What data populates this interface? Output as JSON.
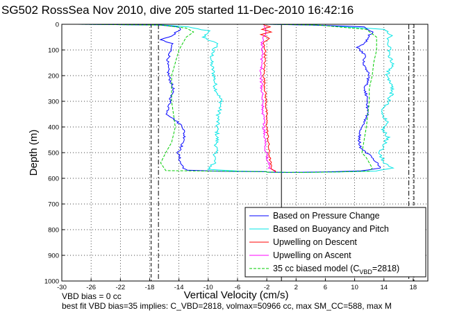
{
  "chart_data": {
    "type": "line",
    "title": "SG502 RossSea Nov 2010, dive 205 started 11-Dec-2010 16:42:16",
    "xlabel": "Vertical Velocity (cm/s)",
    "ylabel": "Depth (m)",
    "xlim": [
      -30,
      20
    ],
    "ylim": [
      1000,
      0
    ],
    "y_reversed": true,
    "xticks": [
      "-30",
      "-26",
      "-22",
      "-18",
      "-14",
      "-10",
      "-6",
      "-2",
      "2",
      "6",
      "10",
      "14",
      "18"
    ],
    "xtick_values": [
      -30,
      -26,
      -22,
      -18,
      -14,
      -10,
      -6,
      -2,
      2,
      6,
      10,
      14,
      18
    ],
    "yticks": [
      "0",
      "100",
      "200",
      "300",
      "400",
      "500",
      "600",
      "700",
      "800",
      "900",
      "1000"
    ],
    "ytick_values": [
      0,
      100,
      200,
      300,
      400,
      500,
      600,
      700,
      800,
      900,
      1000
    ],
    "grid": true,
    "legend_position": "bottom-right",
    "reference_lines": {
      "vertical_solid": [
        0
      ],
      "vertical_dashdot": [
        -16.8,
        17.4
      ],
      "vertical_dashed": [
        -17.8,
        18.1
      ]
    },
    "series": [
      {
        "name": "Based on Pressure Change",
        "color": "#0000ff",
        "descent": [
          [
            -28,
            0
          ],
          [
            -16.6,
            3
          ],
          [
            -14,
            10
          ],
          [
            -13.8,
            20
          ],
          [
            -15.3,
            50
          ],
          [
            -16.6,
            60
          ],
          [
            -15.0,
            75
          ],
          [
            -15.1,
            100
          ],
          [
            -15.6,
            150
          ],
          [
            -15.4,
            200
          ],
          [
            -14.8,
            250
          ],
          [
            -15.2,
            300
          ],
          [
            -15.6,
            350
          ],
          [
            -15.1,
            360
          ],
          [
            -13.4,
            400
          ],
          [
            -13.2,
            450
          ],
          [
            -14.1,
            500
          ],
          [
            -13.8,
            540
          ],
          [
            -13.3,
            560
          ],
          [
            -13.0,
            568
          ],
          [
            -8,
            573
          ],
          [
            -2,
            574
          ]
        ],
        "ascent": [
          [
            -2,
            576
          ],
          [
            1,
            577
          ],
          [
            6,
            575
          ],
          [
            11,
            571
          ],
          [
            13.5,
            560
          ],
          [
            13.0,
            540
          ],
          [
            12.0,
            510
          ],
          [
            10.8,
            480
          ],
          [
            10.6,
            440
          ],
          [
            10.9,
            400
          ],
          [
            11.7,
            360
          ],
          [
            11.8,
            300
          ],
          [
            11.4,
            250
          ],
          [
            12.0,
            200
          ],
          [
            11.2,
            150
          ],
          [
            11.4,
            120
          ],
          [
            10.4,
            90
          ],
          [
            11.5,
            70
          ],
          [
            11.8,
            50
          ],
          [
            12.4,
            30
          ],
          [
            11.4,
            10
          ],
          [
            4,
            3
          ],
          [
            -2,
            0
          ]
        ]
      },
      {
        "name": "Based on Buoyancy and Pitch",
        "color": "#00e5e5",
        "descent": [
          [
            -28,
            0
          ],
          [
            -16,
            3
          ],
          [
            -13,
            10
          ],
          [
            -10.0,
            25
          ],
          [
            -10.6,
            50
          ],
          [
            -8.6,
            80
          ],
          [
            -9.4,
            100
          ],
          [
            -9.6,
            150
          ],
          [
            -9.2,
            200
          ],
          [
            -9.0,
            250
          ],
          [
            -8.2,
            300
          ],
          [
            -8.6,
            350
          ],
          [
            -8.8,
            400
          ],
          [
            -8.8,
            450
          ],
          [
            -9.0,
            500
          ],
          [
            -9.2,
            540
          ],
          [
            -10.0,
            565
          ],
          [
            -6,
            572
          ],
          [
            -2,
            574
          ]
        ],
        "ascent": [
          [
            -2,
            576
          ],
          [
            3,
            577
          ],
          [
            8,
            575
          ],
          [
            13,
            572
          ],
          [
            15.0,
            560
          ],
          [
            14.0,
            540
          ],
          [
            13.5,
            500
          ],
          [
            14.0,
            470
          ],
          [
            14.5,
            440
          ],
          [
            13.8,
            410
          ],
          [
            14.5,
            380
          ],
          [
            13.6,
            340
          ],
          [
            14.6,
            300
          ],
          [
            15.2,
            260
          ],
          [
            14.4,
            200
          ],
          [
            15.2,
            150
          ],
          [
            14.6,
            120
          ],
          [
            14.8,
            90
          ],
          [
            14.6,
            60
          ],
          [
            15.0,
            40
          ],
          [
            14.0,
            20
          ],
          [
            5,
            3
          ],
          [
            -2,
            0
          ]
        ]
      },
      {
        "name": "Upwelling on Descent",
        "color": "#ff0000",
        "descent": [
          [
            -2.5,
            0
          ],
          [
            -1.6,
            10
          ],
          [
            -2.6,
            20
          ],
          [
            -1.4,
            30
          ],
          [
            -2.8,
            40
          ],
          [
            -1.6,
            55
          ],
          [
            -2.5,
            70
          ],
          [
            -2.2,
            100
          ],
          [
            -2.4,
            200
          ],
          [
            -2.1,
            300
          ],
          [
            -2.0,
            400
          ],
          [
            -1.8,
            450
          ],
          [
            -1.7,
            500
          ],
          [
            -1.4,
            560
          ],
          [
            -0.8,
            575
          ]
        ],
        "ascent": []
      },
      {
        "name": "Upwelling on Ascent",
        "color": "#ff00ff",
        "descent": [],
        "ascent": [
          [
            -0.8,
            575
          ],
          [
            -1.6,
            560
          ],
          [
            -2.1,
            500
          ],
          [
            -2.2,
            450
          ],
          [
            -2.4,
            400
          ],
          [
            -2.6,
            300
          ],
          [
            -2.8,
            200
          ],
          [
            -2.6,
            100
          ],
          [
            -2.6,
            60
          ],
          [
            -2.1,
            30
          ],
          [
            -2.4,
            5
          ]
        ]
      },
      {
        "name": "35 cc biased model (C_VBD=2818)",
        "legend_label_main": "35 cc biased model (C",
        "legend_label_sub": "VBD",
        "legend_label_end": "=2818)",
        "color": "#00cc00",
        "descent": [
          [
            -28,
            0
          ],
          [
            -16.5,
            3
          ],
          [
            -13.0,
            15
          ],
          [
            -12.0,
            30
          ],
          [
            -13.0,
            50
          ],
          [
            -14.0,
            100
          ],
          [
            -15.0,
            200
          ],
          [
            -15.0,
            300
          ],
          [
            -14.5,
            400
          ],
          [
            -15.0,
            460
          ],
          [
            -15.8,
            500
          ],
          [
            -16.5,
            540
          ],
          [
            -15.8,
            570
          ],
          [
            -6,
            573
          ],
          [
            -2,
            574
          ]
        ],
        "ascent": [
          [
            -2,
            576
          ],
          [
            3,
            577
          ],
          [
            8,
            575
          ],
          [
            12,
            572
          ],
          [
            12.4,
            560
          ],
          [
            11.6,
            520
          ],
          [
            11.0,
            500
          ],
          [
            11.6,
            400
          ],
          [
            12.0,
            300
          ],
          [
            12.0,
            250
          ],
          [
            12.4,
            200
          ],
          [
            12.6,
            150
          ],
          [
            13.0,
            100
          ],
          [
            13.0,
            50
          ],
          [
            11.6,
            20
          ],
          [
            5,
            3
          ],
          [
            -2,
            0
          ]
        ]
      }
    ]
  },
  "annotations": {
    "line1": "VBD bias = 0 cc",
    "line2": "best fit VBD bias=35 implies: C_VBD=2818, volmax=50966 cc, max SM_CC=588, max M"
  }
}
